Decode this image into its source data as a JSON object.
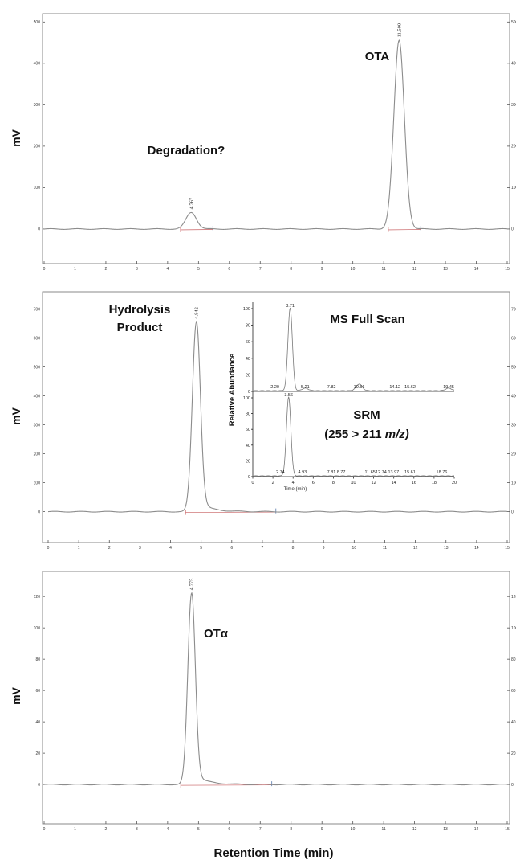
{
  "figure": {
    "xlabel": "Retention Time (min)"
  },
  "chart_data": [
    {
      "type": "line",
      "panel": "top",
      "ylabel": "mV",
      "xlim": [
        0,
        15
      ],
      "ylim": [
        -70,
        520
      ],
      "x_ticks": [
        0,
        1,
        2,
        3,
        4,
        5,
        6,
        7,
        8,
        9,
        10,
        11,
        12,
        13,
        14,
        15
      ],
      "y_ticks": [
        0,
        100,
        200,
        300,
        400,
        500
      ],
      "peaks": [
        {
          "rt": 4.767,
          "label": "4.767",
          "height": 40,
          "width": 0.17
        },
        {
          "rt": 11.5,
          "label": "11.500",
          "height": 455,
          "width": 0.17
        }
      ],
      "annotations": [
        "Degradation?",
        "OTA"
      ]
    },
    {
      "type": "line",
      "panel": "middle",
      "ylabel": "mV",
      "xlim": [
        0,
        15
      ],
      "ylim": [
        -90,
        760
      ],
      "x_ticks": [
        0,
        1,
        2,
        3,
        4,
        5,
        6,
        7,
        8,
        9,
        10,
        11,
        12,
        13,
        14,
        15
      ],
      "y_ticks": [
        0,
        100,
        200,
        300,
        400,
        500,
        600,
        700
      ],
      "peaks": [
        {
          "rt": 4.842,
          "label": "4.842",
          "height": 655,
          "width": 0.13,
          "tail": 0.4
        }
      ],
      "annotations": [
        "Hydrolysis",
        "Product"
      ]
    },
    {
      "type": "line",
      "panel": "middle-inset",
      "ylabel": "Relative Abundance",
      "xlabel": "Time (min)",
      "xlim": [
        0,
        20
      ],
      "x_ticks": [
        0,
        2,
        4,
        6,
        8,
        10,
        12,
        14,
        16,
        18,
        20
      ],
      "y_ticks": [
        0,
        20,
        40,
        60,
        80,
        100
      ],
      "traces": [
        {
          "name": "MS Full Scan",
          "peak_labels": [
            {
              "x": 2.2,
              "label": "2.20"
            },
            {
              "x": 3.71,
              "label": "3.71"
            },
            {
              "x": 5.21,
              "label": "5.21"
            },
            {
              "x": 7.82,
              "label": "7.82"
            },
            {
              "x": 10.56,
              "label": "10.56"
            },
            {
              "x": 14.12,
              "label": "14.12"
            },
            {
              "x": 15.62,
              "label": "15.62"
            },
            {
              "x": 19.45,
              "label": "19.45"
            }
          ],
          "peaks": [
            {
              "x": 3.71,
              "value": 100
            },
            {
              "x": 10.56,
              "value": 8
            },
            {
              "x": 5.21,
              "value": 3
            },
            {
              "x": 19.45,
              "value": 3
            }
          ]
        },
        {
          "name_line1": "SRM",
          "name_line2": "(255 > 211",
          "name_unit": "m/z)",
          "peak_labels": [
            {
              "x": 2.74,
              "label": "2.74"
            },
            {
              "x": 3.56,
              "label": "3.56"
            },
            {
              "x": 4.93,
              "label": "4.93"
            },
            {
              "x": 7.81,
              "label": "7.81"
            },
            {
              "x": 8.77,
              "label": "8.77"
            },
            {
              "x": 11.65,
              "label": "11.65"
            },
            {
              "x": 12.74,
              "label": "12.74"
            },
            {
              "x": 13.97,
              "label": "13.97"
            },
            {
              "x": 15.61,
              "label": "15.61"
            },
            {
              "x": 18.76,
              "label": "18.76"
            }
          ],
          "peaks": [
            {
              "x": 3.56,
              "value": 100
            }
          ]
        }
      ]
    },
    {
      "type": "line",
      "panel": "bottom",
      "ylabel": "mV",
      "xlim": [
        0,
        15
      ],
      "ylim": [
        -22,
        136
      ],
      "x_ticks": [
        0,
        1,
        2,
        3,
        4,
        5,
        6,
        7,
        8,
        9,
        10,
        11,
        12,
        13,
        14,
        15
      ],
      "y_ticks": [
        0,
        20,
        40,
        60,
        80,
        100,
        120
      ],
      "peaks": [
        {
          "rt": 4.775,
          "label": "4.775",
          "height": 122,
          "width": 0.12,
          "tail": 0.42
        }
      ],
      "annotations": [
        "OTα"
      ]
    }
  ]
}
